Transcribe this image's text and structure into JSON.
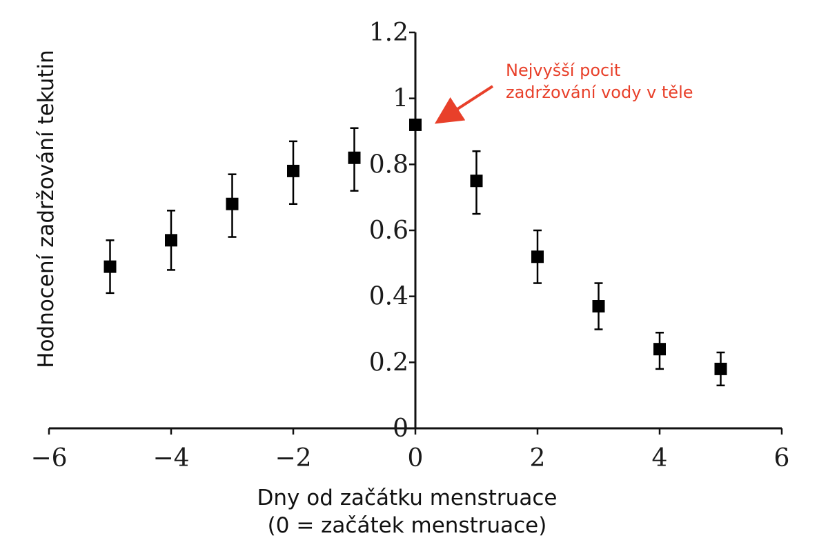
{
  "chart_data": {
    "type": "scatter",
    "xlabel": [
      "Dny od začátku menstruace",
      "(0 = začátek menstruace)"
    ],
    "ylabel": "Hodnocení zadržování tekutin",
    "xlim": [
      -6,
      6
    ],
    "ylim": [
      0,
      1.2
    ],
    "x_ticks": [
      -6,
      -4,
      -2,
      0,
      2,
      4,
      6
    ],
    "x_tick_labels": [
      "−6",
      "−4",
      "−2",
      "0",
      "2",
      "4",
      "6"
    ],
    "y_ticks": [
      0,
      0.2,
      0.4,
      0.6,
      0.8,
      1,
      1.2
    ],
    "y_tick_labels": [
      "0",
      "0.2",
      "0.4",
      "0.6",
      "0.8",
      "1",
      "1.2"
    ],
    "grid": false,
    "series": [
      {
        "marker": "square",
        "color": "#000000",
        "points": [
          {
            "x": -5,
            "y": 0.49,
            "err_low": 0.41,
            "err_high": 0.57
          },
          {
            "x": -4,
            "y": 0.57,
            "err_low": 0.48,
            "err_high": 0.66
          },
          {
            "x": -3,
            "y": 0.68,
            "err_low": 0.58,
            "err_high": 0.77
          },
          {
            "x": -2,
            "y": 0.78,
            "err_low": 0.68,
            "err_high": 0.87
          },
          {
            "x": -1,
            "y": 0.82,
            "err_low": 0.72,
            "err_high": 0.91
          },
          {
            "x": 0,
            "y": 0.92,
            "err_low": 0.92,
            "err_high": 0.92
          },
          {
            "x": 1,
            "y": 0.75,
            "err_low": 0.65,
            "err_high": 0.84
          },
          {
            "x": 2,
            "y": 0.52,
            "err_low": 0.44,
            "err_high": 0.6
          },
          {
            "x": 3,
            "y": 0.37,
            "err_low": 0.3,
            "err_high": 0.44
          },
          {
            "x": 4,
            "y": 0.24,
            "err_low": 0.18,
            "err_high": 0.29
          },
          {
            "x": 5,
            "y": 0.18,
            "err_low": 0.13,
            "err_high": 0.23
          }
        ]
      }
    ],
    "annotation": {
      "lines": [
        "Nejvyšší pocit",
        "zadržování vody v těle"
      ],
      "color": "#e8402a",
      "points_to": {
        "x": 0,
        "y": 0.92
      }
    }
  }
}
